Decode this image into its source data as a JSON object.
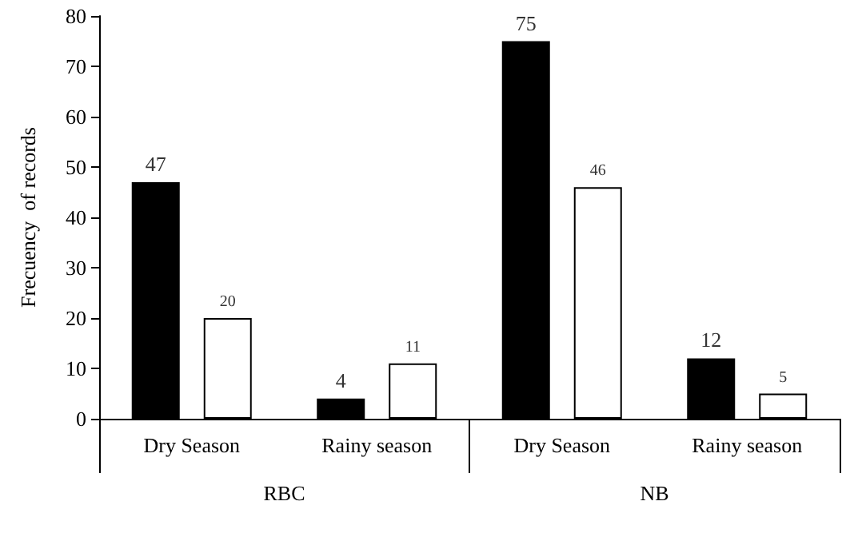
{
  "chart_data": {
    "type": "bar",
    "ylabel": "Frecuency  of records",
    "categories": [
      "Dry Season",
      "Rainy season",
      "Dry Season",
      "Rainy season"
    ],
    "series": [
      {
        "color": "#000000",
        "values": [
          47,
          4,
          75,
          12
        ]
      },
      {
        "color": "#ffffff",
        "values": [
          20,
          11,
          46,
          5
        ]
      }
    ],
    "annotations": [
      "RBC",
      "NB"
    ],
    "ylim": [
      0,
      80
    ],
    "yticks": [
      0,
      10,
      20,
      30,
      40,
      50,
      60,
      70,
      80
    ],
    "grid": false,
    "data_labels": true
  }
}
